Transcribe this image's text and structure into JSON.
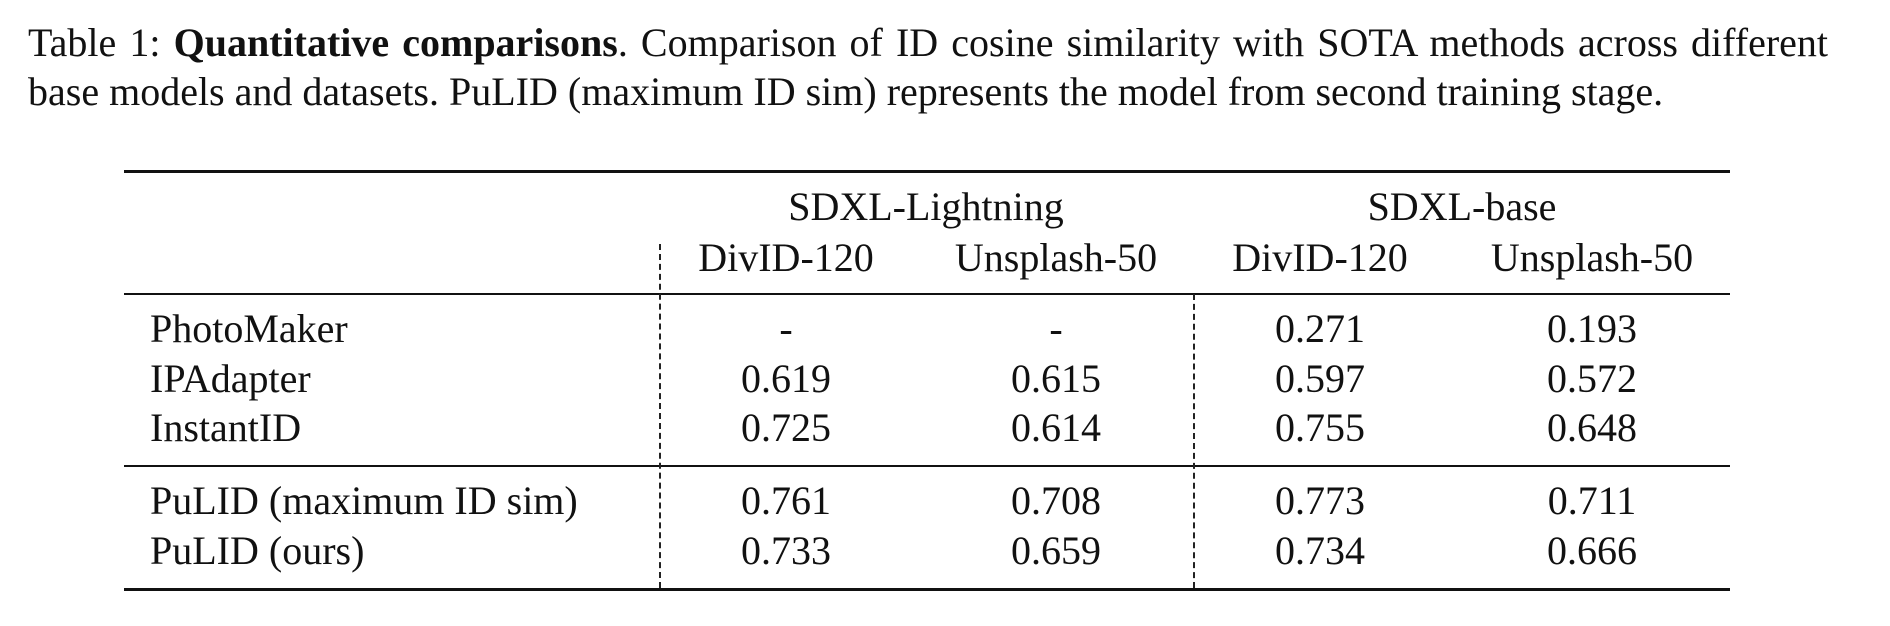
{
  "caption": {
    "label": "Table 1:",
    "bold_title": "Quantitative comparisons",
    "text": ". Comparison of ID cosine similarity with SOTA methods across different base models and datasets. PuLID (maximum ID sim) represents the model from second training stage."
  },
  "table": {
    "groups": [
      "SDXL-Lightning",
      "SDXL-base"
    ],
    "columns": [
      "DivID-120",
      "Unsplash-50",
      "DivID-120",
      "Unsplash-50"
    ],
    "block1": [
      {
        "method": "PhotoMaker",
        "values": [
          "-",
          "-",
          "0.271",
          "0.193"
        ]
      },
      {
        "method": "IPAdapter",
        "values": [
          "0.619",
          "0.615",
          "0.597",
          "0.572"
        ]
      },
      {
        "method": "InstantID",
        "values": [
          "0.725",
          "0.614",
          "0.755",
          "0.648"
        ]
      }
    ],
    "block2": [
      {
        "method": "PuLID (maximum ID sim)",
        "values": [
          "0.761",
          "0.708",
          "0.773",
          "0.711"
        ]
      },
      {
        "method": "PuLID (ours)",
        "values": [
          "0.733",
          "0.659",
          "0.734",
          "0.666"
        ]
      }
    ]
  }
}
